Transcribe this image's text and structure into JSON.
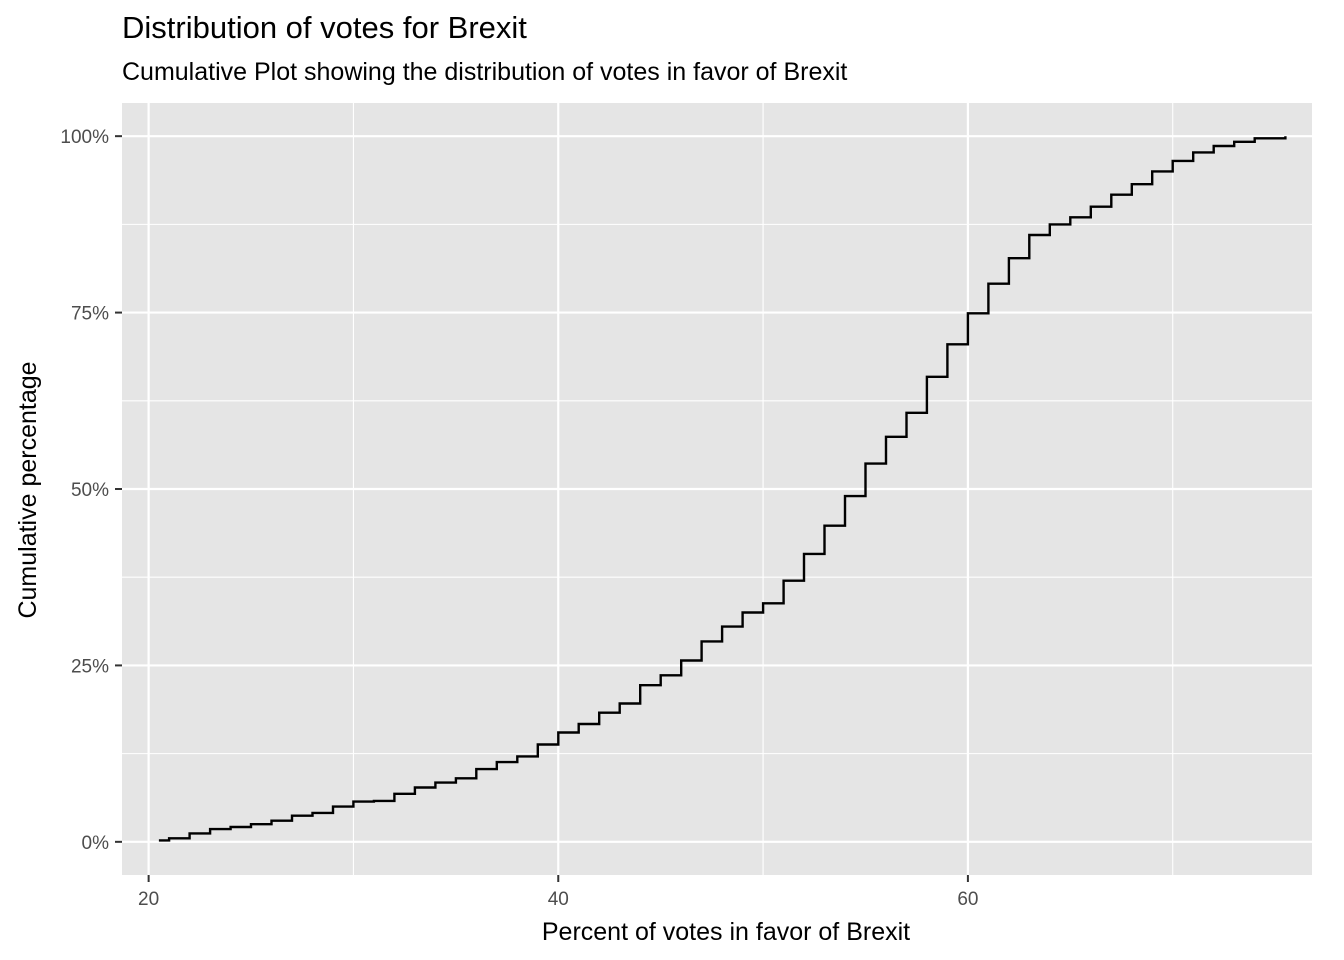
{
  "chart_data": {
    "type": "line",
    "title": "Distribution of votes for Brexit",
    "subtitle": "Cumulative Plot showing the distribution of votes in favor of Brexit",
    "xlabel": "Percent of votes in favor of Brexit",
    "ylabel": "Cumulative percentage",
    "xlim": [
      18.7,
      76.8
    ],
    "ylim": [
      -0.047,
      1.047
    ],
    "x_ticks": [
      20,
      40,
      60
    ],
    "x_tick_labels": [
      "20",
      "40",
      "60"
    ],
    "y_ticks": [
      0,
      0.25,
      0.5,
      0.75,
      1.0
    ],
    "y_tick_labels": [
      "0%",
      "25%",
      "50%",
      "75%",
      "100%"
    ],
    "grid": true,
    "legend": "none",
    "panel_background": "#e5e5e5",
    "grid_color": "#ffffff",
    "line_color": "#000000",
    "series": [
      {
        "x": [
          20.5,
          21.0,
          22.0,
          23.0,
          24.0,
          25.0,
          26.0,
          27.0,
          28.0,
          29.0,
          30.0,
          31.0,
          32.0,
          33.0,
          34.0,
          35.0,
          36.0,
          37.0,
          38.0,
          39.0,
          40.0,
          41.0,
          42.0,
          43.0,
          44.0,
          45.0,
          46.0,
          47.0,
          48.0,
          49.0,
          50.0,
          51.0,
          52.0,
          53.0,
          54.0,
          55.0,
          56.0,
          57.0,
          58.0,
          59.0,
          60.0,
          61.0,
          62.0,
          63.0,
          64.0,
          65.0,
          66.0,
          67.0,
          68.0,
          69.0,
          70.0,
          71.0,
          72.0,
          73.0,
          74.0,
          75.5
        ],
        "y": [
          0.002,
          0.005,
          0.012,
          0.018,
          0.021,
          0.025,
          0.03,
          0.037,
          0.041,
          0.05,
          0.057,
          0.058,
          0.068,
          0.077,
          0.084,
          0.09,
          0.103,
          0.113,
          0.121,
          0.138,
          0.155,
          0.167,
          0.183,
          0.196,
          0.222,
          0.236,
          0.257,
          0.284,
          0.305,
          0.325,
          0.338,
          0.37,
          0.408,
          0.448,
          0.49,
          0.536,
          0.574,
          0.608,
          0.659,
          0.705,
          0.749,
          0.791,
          0.827,
          0.86,
          0.875,
          0.885,
          0.9,
          0.917,
          0.932,
          0.95,
          0.965,
          0.977,
          0.986,
          0.992,
          0.997,
          1.0
        ]
      }
    ]
  }
}
